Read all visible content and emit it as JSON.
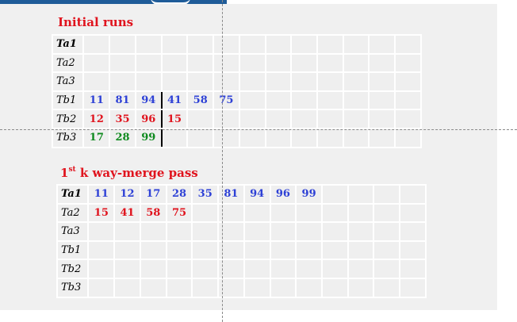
{
  "colors": {
    "blue": "#2e41d6",
    "red": "#e0141e",
    "green": "#0f8a1f",
    "black": "#000000"
  },
  "section1": {
    "title": "Initial runs",
    "rows": [
      {
        "label": "Ta1",
        "bold": true,
        "sep": 0,
        "cells": []
      },
      {
        "label": "Ta2",
        "bold": false,
        "sep": 0,
        "cells": []
      },
      {
        "label": "Ta3",
        "bold": false,
        "sep": 0,
        "cells": []
      },
      {
        "label": "Tb1",
        "bold": false,
        "sep": 3,
        "cells": [
          {
            "v": "11",
            "c": "blue"
          },
          {
            "v": "81",
            "c": "blue"
          },
          {
            "v": "94",
            "c": "blue"
          },
          {
            "v": "41",
            "c": "blue"
          },
          {
            "v": "58",
            "c": "blue"
          },
          {
            "v": "75",
            "c": "blue"
          }
        ]
      },
      {
        "label": "Tb2",
        "bold": false,
        "sep": 3,
        "cells": [
          {
            "v": "12",
            "c": "red"
          },
          {
            "v": "35",
            "c": "red"
          },
          {
            "v": "96",
            "c": "red"
          },
          {
            "v": "15",
            "c": "red"
          }
        ]
      },
      {
        "label": "Tb3",
        "bold": false,
        "sep": 3,
        "cells": [
          {
            "v": "17",
            "c": "green"
          },
          {
            "v": "28",
            "c": "green"
          },
          {
            "v": "99",
            "c": "green"
          }
        ]
      }
    ]
  },
  "section2": {
    "title_prefix": "1",
    "title_sup": "st",
    "title_rest": " k way-merge pass",
    "rows": [
      {
        "label": "Ta1",
        "bold": true,
        "sep": 0,
        "cells": [
          {
            "v": "11",
            "c": "blue"
          },
          {
            "v": "12",
            "c": "blue"
          },
          {
            "v": "17",
            "c": "blue"
          },
          {
            "v": "28",
            "c": "blue"
          },
          {
            "v": "35",
            "c": "blue"
          },
          {
            "v": "81",
            "c": "blue"
          },
          {
            "v": "94",
            "c": "blue"
          },
          {
            "v": "96",
            "c": "blue"
          },
          {
            "v": "99",
            "c": "blue"
          }
        ]
      },
      {
        "label": "Ta2",
        "bold": false,
        "sep": 0,
        "cells": [
          {
            "v": "15",
            "c": "red"
          },
          {
            "v": "41",
            "c": "red"
          },
          {
            "v": "58",
            "c": "red"
          },
          {
            "v": "75",
            "c": "red"
          }
        ]
      },
      {
        "label": "Ta3",
        "bold": false,
        "sep": 0,
        "cells": []
      },
      {
        "label": "Tb1",
        "bold": false,
        "sep": 0,
        "cells": []
      },
      {
        "label": "Tb2",
        "bold": false,
        "sep": 0,
        "cells": []
      },
      {
        "label": "Tb3",
        "bold": false,
        "sep": 0,
        "cells": []
      }
    ]
  }
}
